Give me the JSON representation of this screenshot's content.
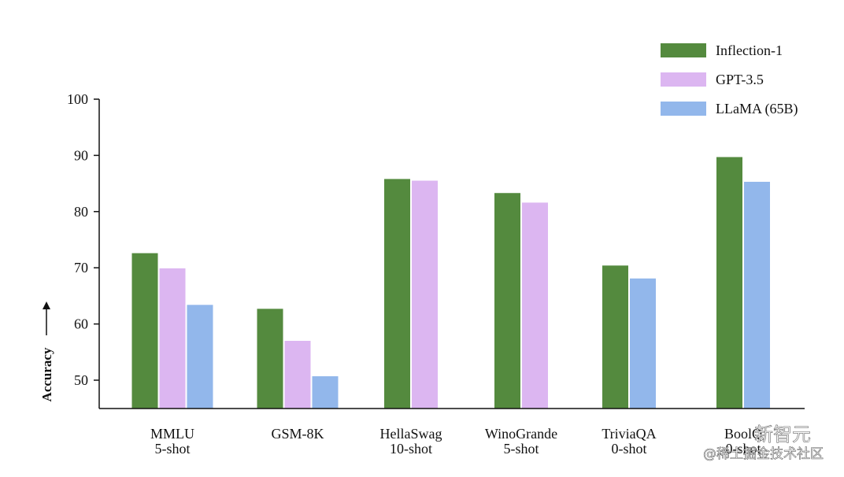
{
  "chart_data": {
    "type": "bar",
    "title": "",
    "xlabel": "",
    "ylabel": "Accuracy",
    "ylim": [
      45,
      100
    ],
    "yticks": [
      50,
      60,
      70,
      80,
      90,
      100
    ],
    "grid": false,
    "legend_position": "top-right",
    "categories": [
      {
        "line1": "MMLU",
        "line2": "5-shot"
      },
      {
        "line1": "GSM-8K",
        "line2": ""
      },
      {
        "line1": "HellaSwag",
        "line2": "10-shot"
      },
      {
        "line1": "WinoGrande",
        "line2": "5-shot"
      },
      {
        "line1": "TriviaQA",
        "line2": "0-shot"
      },
      {
        "line1": "BoolQ",
        "line2": "0-shot"
      }
    ],
    "series": [
      {
        "name": "Inflection-1",
        "color": "#548a3e",
        "values": [
          72.6,
          62.7,
          85.8,
          83.3,
          70.4,
          89.7
        ]
      },
      {
        "name": "GPT-3.5",
        "color": "#dcb6f1",
        "values": [
          69.9,
          57.0,
          85.5,
          81.6,
          null,
          null
        ]
      },
      {
        "name": "LLaMA (65B)",
        "color": "#92b7eb",
        "values": [
          63.4,
          50.7,
          null,
          null,
          68.1,
          85.3
        ]
      }
    ]
  },
  "watermark": {
    "line1": "新智元",
    "line2": "@稀土掘金技术社区"
  }
}
